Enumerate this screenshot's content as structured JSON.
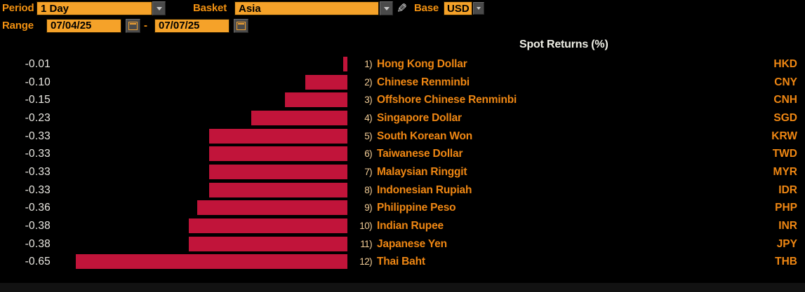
{
  "header": {
    "period_label": "Period",
    "period_value": "1 Day",
    "basket_label": "Basket",
    "basket_value": "Asia",
    "base_label": "Base",
    "base_value": "USD",
    "range_label": "Range",
    "range_start": "07/04/25",
    "range_separator": "-",
    "range_end": "07/07/25"
  },
  "icons": {
    "period_arrow": "dropdown-arrow",
    "basket_arrow": "dropdown-arrow",
    "base_arrow": "dropdown-arrow",
    "edit_pencil": "pencil-icon",
    "pencil_glyph": "✎",
    "calendar_start": "calendar-icon",
    "calendar_end": "calendar-icon"
  },
  "colors": {
    "background": "#000000",
    "accent_orange_text": "#ef8713",
    "accent_orange_fill": "#f5a229",
    "bar_red": "#c1143a",
    "value_white": "#eceae4",
    "button_gray": "#4a4a4a"
  },
  "chart_data": {
    "type": "bar",
    "orientation": "horizontal",
    "title": "Spot Returns (%)",
    "xlabel": "",
    "ylabel": "",
    "xlim": [
      -0.68,
      0
    ],
    "grid": false,
    "legend": "none",
    "bar_color": "#c1143a",
    "categories": [
      "Hong Kong Dollar",
      "Chinese Renminbi",
      "Offshore Chinese Renminbi",
      "Singapore Dollar",
      "South Korean Won",
      "Taiwanese Dollar",
      "Malaysian Ringgit",
      "Indonesian Rupiah",
      "Philippine Peso",
      "Indian Rupee",
      "Japanese Yen",
      "Thai Baht"
    ],
    "values": [
      -0.01,
      -0.1,
      -0.15,
      -0.23,
      -0.33,
      -0.33,
      -0.33,
      -0.33,
      -0.36,
      -0.38,
      -0.38,
      -0.65
    ],
    "rows": [
      {
        "num": "1)",
        "name": "Hong Kong Dollar",
        "code": "HKD",
        "value": -0.01,
        "value_label": "-0.01"
      },
      {
        "num": "2)",
        "name": "Chinese Renminbi",
        "code": "CNY",
        "value": -0.1,
        "value_label": "-0.10"
      },
      {
        "num": "3)",
        "name": "Offshore Chinese Renminbi",
        "code": "CNH",
        "value": -0.15,
        "value_label": "-0.15"
      },
      {
        "num": "4)",
        "name": "Singapore Dollar",
        "code": "SGD",
        "value": -0.23,
        "value_label": "-0.23"
      },
      {
        "num": "5)",
        "name": "South Korean Won",
        "code": "KRW",
        "value": -0.33,
        "value_label": "-0.33"
      },
      {
        "num": "6)",
        "name": "Taiwanese Dollar",
        "code": "TWD",
        "value": -0.33,
        "value_label": "-0.33"
      },
      {
        "num": "7)",
        "name": "Malaysian Ringgit",
        "code": "MYR",
        "value": -0.33,
        "value_label": "-0.33"
      },
      {
        "num": "8)",
        "name": "Indonesian Rupiah",
        "code": "IDR",
        "value": -0.33,
        "value_label": "-0.33"
      },
      {
        "num": "9)",
        "name": "Philippine Peso",
        "code": "PHP",
        "value": -0.36,
        "value_label": "-0.36"
      },
      {
        "num": "10)",
        "name": "Indian Rupee",
        "code": "INR",
        "value": -0.38,
        "value_label": "-0.38"
      },
      {
        "num": "11)",
        "name": "Japanese Yen",
        "code": "JPY",
        "value": -0.38,
        "value_label": "-0.38"
      },
      {
        "num": "12)",
        "name": "Thai Baht",
        "code": "THB",
        "value": -0.65,
        "value_label": "-0.65"
      }
    ]
  }
}
